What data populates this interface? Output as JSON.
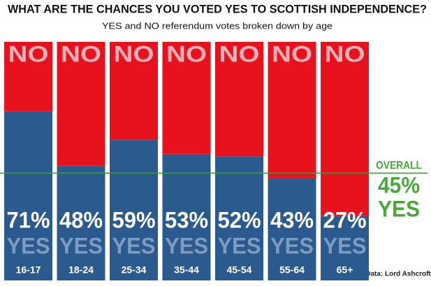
{
  "chart_data": {
    "type": "stacked_bar",
    "title": "WHAT ARE THE CHANCES YOU VOTED YES TO SCOTTISH INDEPENDENCE?",
    "subtitle": "YES and NO referendum votes broken down by age",
    "categories": [
      "16-17",
      "18-24",
      "25-34",
      "35-44",
      "45-54",
      "55-64",
      "65+"
    ],
    "series": [
      {
        "name": "YES",
        "color": "#2b5b8e",
        "values": [
          71,
          48,
          59,
          53,
          52,
          43,
          27
        ],
        "value_labels": [
          "71%",
          "48%",
          "59%",
          "53%",
          "52%",
          "43%",
          "27%"
        ]
      },
      {
        "name": "NO",
        "color": "#e8121f",
        "values": [
          29,
          52,
          41,
          47,
          48,
          57,
          73
        ]
      }
    ],
    "ylim": [
      0,
      100
    ],
    "overall": {
      "label": "OVERALL",
      "value": 45,
      "value_label": "45%"
    },
    "source": "Data: Lord Ashcroft"
  }
}
